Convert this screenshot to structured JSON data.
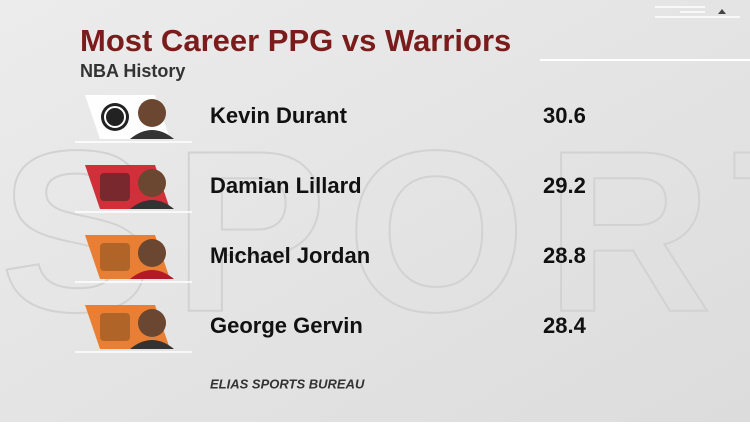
{
  "header": {
    "title": "Most Career PPG vs Warriors",
    "subtitle": "NBA History"
  },
  "table": {
    "rows": [
      {
        "player": "Kevin Durant",
        "ppg": 30.6
      },
      {
        "player": "Damian Lillard",
        "ppg": 29.2
      },
      {
        "player": "Michael Jordan",
        "ppg": 28.8
      },
      {
        "player": "George Gervin",
        "ppg": 28.4
      }
    ]
  },
  "footer": {
    "source": "ELIAS SPORTS BUREAU"
  }
}
